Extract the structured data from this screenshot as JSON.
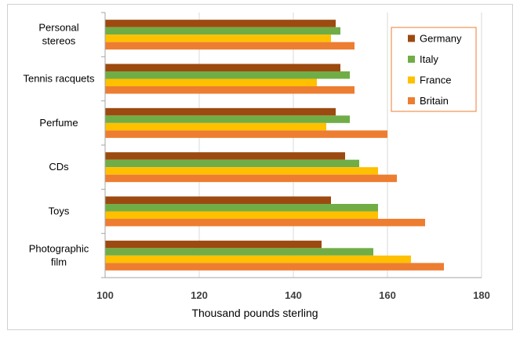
{
  "chart_data": {
    "type": "bar",
    "orientation": "horizontal",
    "categories": [
      [
        "Personal",
        "stereos"
      ],
      [
        "Tennis racquets"
      ],
      [
        "Perfume"
      ],
      [
        "CDs"
      ],
      [
        "Toys"
      ],
      [
        "Photographic",
        "film"
      ]
    ],
    "series": [
      {
        "name": "Germany",
        "color": "#9c4a10",
        "values": [
          149,
          150,
          149,
          151,
          148,
          146
        ]
      },
      {
        "name": "Italy",
        "color": "#70ad47",
        "values": [
          150,
          152,
          152,
          154,
          158,
          157
        ]
      },
      {
        "name": "France",
        "color": "#ffc000",
        "values": [
          148,
          145,
          147,
          158,
          158,
          165
        ]
      },
      {
        "name": "Britain",
        "color": "#ed7d31",
        "values": [
          153,
          153,
          160,
          162,
          168,
          172
        ]
      }
    ],
    "xlabel": "Thousand pounds sterling",
    "xlim": [
      100,
      180
    ],
    "xticks": [
      100,
      120,
      140,
      160,
      180
    ],
    "grid": true,
    "legend_position": "top-right",
    "legend_border_color": "#ed7d31"
  }
}
